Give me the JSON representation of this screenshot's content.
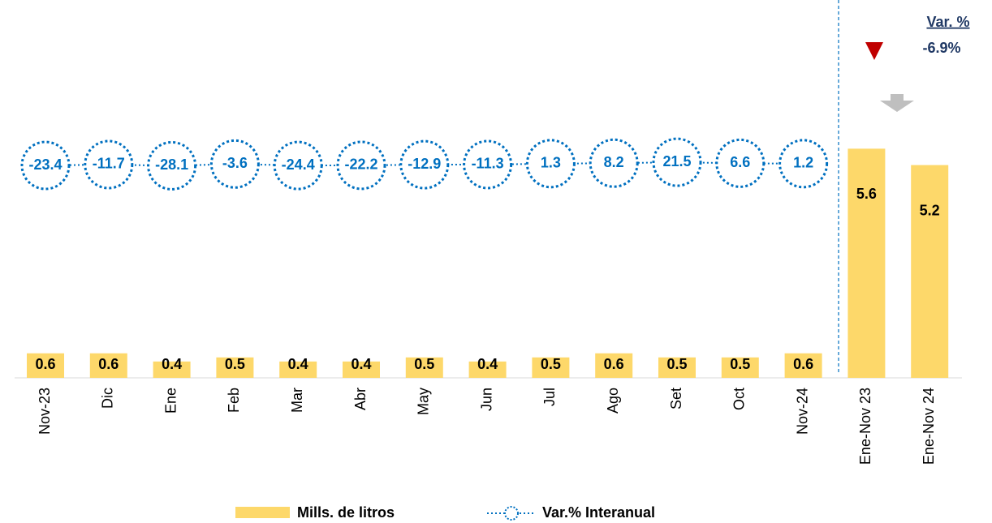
{
  "chart_data": {
    "type": "bar",
    "categories": [
      "Nov-23",
      "Dic",
      "Ene",
      "Feb",
      "Mar",
      "Abr",
      "May",
      "Jun",
      "Jul",
      "Ago",
      "Set",
      "Oct",
      "Nov-24",
      "Ene-Nov 23",
      "Ene-Nov 24"
    ],
    "series": [
      {
        "name": "Mills. de litros",
        "color": "#fdd86a",
        "type": "bar",
        "values": [
          0.6,
          0.6,
          0.4,
          0.5,
          0.4,
          0.4,
          0.5,
          0.4,
          0.5,
          0.6,
          0.5,
          0.5,
          0.6,
          5.6,
          5.2
        ]
      },
      {
        "name": "Var.% Interanual",
        "color": "#0070c0",
        "type": "line",
        "axis": "y2",
        "values": [
          -23.4,
          -11.7,
          -28.1,
          -3.6,
          -24.4,
          -22.2,
          -12.9,
          -11.3,
          1.3,
          8.2,
          21.5,
          6.6,
          1.2,
          null,
          null
        ]
      }
    ],
    "ylim": [
      0,
      6.4
    ],
    "y2lim": [
      -3000,
      670
    ],
    "annotations": [
      "Var. %",
      "-6.9%"
    ],
    "legend": "bottom"
  }
}
